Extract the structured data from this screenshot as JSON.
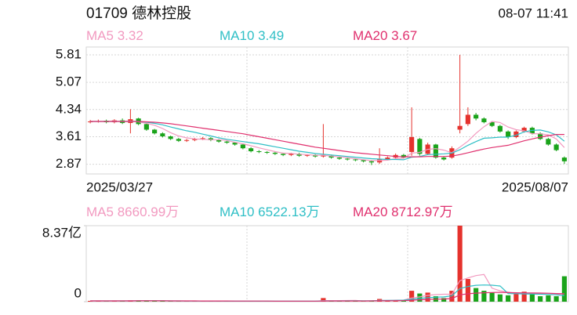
{
  "header": {
    "title": "01709 德林控股",
    "time": "08-07 11:41"
  },
  "chart_data": [
    {
      "type": "candlestick",
      "categories": [
        "2025/03/27",
        null,
        null,
        null,
        null,
        null,
        null,
        null,
        null,
        null,
        null,
        null,
        null,
        null,
        null,
        null,
        null,
        null,
        null,
        null,
        null,
        null,
        null,
        null,
        null,
        null,
        null,
        null,
        null,
        null,
        null,
        null,
        null,
        null,
        null,
        null,
        null,
        null,
        null,
        null,
        null,
        null,
        null,
        null,
        null,
        null,
        null,
        null,
        null,
        null,
        null,
        null,
        null,
        null,
        null,
        null,
        null,
        null,
        null,
        "2025/08/07"
      ],
      "open": [
        4.0,
        4.02,
        4.04,
        4.0,
        4.05,
        3.98,
        4.1,
        3.95,
        3.8,
        3.7,
        3.62,
        3.55,
        3.5,
        3.52,
        3.55,
        3.57,
        3.52,
        3.48,
        3.45,
        3.4,
        3.3,
        3.22,
        3.2,
        3.18,
        3.15,
        3.12,
        3.15,
        3.1,
        3.12,
        3.08,
        3.1,
        3.05,
        3.02,
        3.0,
        2.98,
        2.95,
        2.92,
        3.0,
        3.05,
        3.12,
        3.2,
        3.55,
        3.15,
        3.4,
        3.05,
        3.05,
        3.8,
        3.95,
        4.2,
        4.1,
        4.0,
        3.9,
        3.75,
        3.6,
        3.75,
        3.85,
        3.7,
        3.55,
        3.4,
        3.05
      ],
      "high": [
        4.06,
        4.07,
        4.07,
        4.08,
        4.1,
        4.35,
        4.12,
        3.98,
        3.82,
        3.73,
        3.64,
        3.58,
        3.55,
        3.58,
        3.6,
        3.6,
        3.55,
        3.5,
        3.47,
        3.42,
        3.33,
        3.25,
        3.22,
        3.21,
        3.18,
        3.18,
        3.18,
        3.14,
        3.14,
        3.95,
        3.13,
        3.08,
        3.05,
        3.03,
        3.0,
        2.98,
        3.3,
        3.08,
        3.16,
        3.15,
        4.4,
        3.58,
        3.45,
        3.42,
        3.08,
        3.35,
        5.81,
        4.4,
        4.25,
        4.13,
        4.03,
        3.93,
        3.78,
        3.78,
        3.88,
        3.88,
        3.73,
        3.58,
        3.43,
        3.08
      ],
      "low": [
        3.97,
        3.99,
        3.97,
        3.97,
        3.95,
        3.7,
        3.92,
        3.77,
        3.67,
        3.59,
        3.52,
        3.47,
        3.47,
        3.49,
        3.52,
        3.49,
        3.45,
        3.42,
        3.37,
        3.27,
        3.19,
        3.17,
        3.15,
        3.12,
        3.09,
        3.09,
        3.07,
        3.07,
        3.05,
        3.05,
        3.02,
        2.99,
        2.97,
        2.95,
        2.92,
        2.85,
        2.88,
        2.97,
        3.02,
        3.02,
        3.1,
        3.1,
        3.12,
        3.02,
        2.97,
        3.02,
        3.7,
        3.9,
        4.05,
        3.97,
        3.87,
        3.72,
        3.55,
        3.57,
        3.72,
        3.67,
        3.52,
        3.37,
        3.22,
        2.88
      ],
      "close": [
        4.02,
        4.03,
        4.0,
        4.05,
        3.98,
        4.08,
        3.95,
        3.8,
        3.7,
        3.62,
        3.55,
        3.5,
        3.52,
        3.55,
        3.57,
        3.52,
        3.48,
        3.45,
        3.4,
        3.3,
        3.22,
        3.2,
        3.18,
        3.15,
        3.12,
        3.15,
        3.1,
        3.12,
        3.08,
        3.12,
        3.05,
        3.02,
        3.0,
        2.98,
        2.95,
        2.92,
        3.0,
        3.05,
        3.12,
        3.05,
        3.6,
        3.15,
        3.4,
        3.05,
        3.0,
        3.3,
        3.9,
        4.2,
        4.1,
        4.0,
        3.9,
        3.75,
        3.6,
        3.75,
        3.85,
        3.7,
        3.55,
        3.4,
        3.25,
        2.95
      ],
      "series": [
        {
          "name": "MA5",
          "color": "#f29ac0",
          "values": [
            4.02,
            4.02,
            4.02,
            4.03,
            4.02,
            4.03,
            4.01,
            3.97,
            3.92,
            3.83,
            3.72,
            3.63,
            3.58,
            3.55,
            3.54,
            3.53,
            3.53,
            3.51,
            3.46,
            3.42,
            3.37,
            3.31,
            3.26,
            3.21,
            3.17,
            3.16,
            3.14,
            3.13,
            3.11,
            3.11,
            3.09,
            3.07,
            3.05,
            3.02,
            2.99,
            2.97,
            2.97,
            2.98,
            3.02,
            3.03,
            3.17,
            3.19,
            3.27,
            3.29,
            3.25,
            3.18,
            3.33,
            3.49,
            3.7,
            3.88,
            4.02,
            3.99,
            3.87,
            3.8,
            3.77,
            3.69,
            3.69,
            3.66,
            3.55,
            3.32
          ]
        },
        {
          "name": "MA10",
          "color": "#2fbfc6",
          "values": [
            4.02,
            4.02,
            4.02,
            4.02,
            4.02,
            4.02,
            4.02,
            4.0,
            3.97,
            3.93,
            3.87,
            3.82,
            3.77,
            3.73,
            3.68,
            3.63,
            3.58,
            3.54,
            3.51,
            3.48,
            3.45,
            3.42,
            3.38,
            3.34,
            3.3,
            3.26,
            3.22,
            3.19,
            3.16,
            3.14,
            3.12,
            3.1,
            3.08,
            3.06,
            3.04,
            3.02,
            3.01,
            3.0,
            3.0,
            2.99,
            3.06,
            3.08,
            3.13,
            3.14,
            3.15,
            3.17,
            3.26,
            3.38,
            3.48,
            3.57,
            3.58,
            3.6,
            3.6,
            3.65,
            3.74,
            3.78,
            3.79,
            3.74,
            3.66,
            3.49
          ]
        },
        {
          "name": "MA20",
          "color": "#e0306e",
          "values": [
            4.02,
            4.02,
            4.02,
            4.02,
            4.02,
            4.02,
            4.02,
            4.01,
            4.0,
            3.98,
            3.96,
            3.93,
            3.9,
            3.87,
            3.84,
            3.81,
            3.78,
            3.75,
            3.72,
            3.69,
            3.65,
            3.61,
            3.57,
            3.53,
            3.49,
            3.45,
            3.41,
            3.37,
            3.33,
            3.3,
            3.27,
            3.24,
            3.21,
            3.18,
            3.16,
            3.14,
            3.12,
            3.1,
            3.08,
            3.07,
            3.07,
            3.07,
            3.08,
            3.08,
            3.08,
            3.09,
            3.13,
            3.18,
            3.23,
            3.28,
            3.32,
            3.35,
            3.38,
            3.44,
            3.5,
            3.55,
            3.6,
            3.64,
            3.67,
            3.67
          ]
        }
      ],
      "ylim": [
        2.61,
        6.02
      ],
      "yticks": [
        2.87,
        3.61,
        4.34,
        5.07,
        5.81
      ],
      "up_color": "#e5322d",
      "down_color": "#1aa31a",
      "grid": true
    },
    {
      "type": "bar",
      "values": [
        900,
        800,
        700,
        1200,
        900,
        1500,
        1100,
        900,
        800,
        700,
        600,
        650,
        500,
        700,
        600,
        550,
        600,
        500,
        550,
        600,
        700,
        600,
        500,
        550,
        450,
        500,
        600,
        450,
        500,
        4000,
        700,
        600,
        800,
        900,
        1000,
        1200,
        3000,
        1500,
        1800,
        2000,
        12000,
        9000,
        10000,
        6000,
        4000,
        12000,
        83700,
        25000,
        15000,
        12000,
        10000,
        8000,
        7000,
        9000,
        11000,
        9000,
        6000,
        7000,
        6000,
        28000
      ],
      "series": [
        {
          "name": "MA5",
          "color": "#f29ac0",
          "value_label": "8660.99万",
          "values": [
            900,
            850,
            800,
            900,
            900,
            1000,
            1100,
            1100,
            1000,
            1000,
            900,
            750,
            700,
            650,
            600,
            600,
            600,
            600,
            560,
            560,
            600,
            590,
            590,
            590,
            560,
            560,
            520,
            520,
            500,
            1200,
            1250,
            1250,
            1300,
            1400,
            800,
            880,
            1380,
            1500,
            1700,
            1900,
            4060,
            5260,
            6960,
            7800,
            8200,
            8200,
            23140,
            26140,
            28740,
            29940,
            14800,
            12000,
            10400,
            9200,
            9000,
            8800,
            8600,
            8400,
            7800,
            8660.99
          ]
        },
        {
          "name": "MA10",
          "color": "#2fbfc6",
          "value_label": "6522.13万",
          "values": [
            900,
            880,
            850,
            880,
            880,
            900,
            950,
            950,
            950,
            940,
            900,
            850,
            780,
            730,
            700,
            700,
            650,
            620,
            600,
            600,
            600,
            600,
            590,
            580,
            570,
            560,
            560,
            550,
            540,
            880,
            890,
            900,
            920,
            960,
            1010,
            1060,
            1300,
            1400,
            1500,
            1650,
            2680,
            3500,
            4440,
            4960,
            5270,
            6350,
            14400,
            16700,
            18000,
            18400,
            18100,
            17300,
            9000,
            8800,
            8500,
            8400,
            8200,
            8000,
            7500,
            6522.13
          ]
        },
        {
          "name": "MA20",
          "color": "#e0306e",
          "value_label": "8712.97万",
          "values": [
            900,
            880,
            850,
            870,
            870,
            890,
            920,
            930,
            930,
            920,
            900,
            880,
            860,
            830,
            800,
            780,
            760,
            740,
            720,
            700,
            680,
            670,
            650,
            630,
            620,
            600,
            590,
            580,
            570,
            730,
            750,
            760,
            770,
            790,
            800,
            820,
            930,
            990,
            1040,
            1100,
            1620,
            2030,
            2500,
            2760,
            2900,
            3460,
            7500,
            8700,
            9400,
            9800,
            10100,
            10300,
            10000,
            9800,
            9700,
            9600,
            9500,
            9300,
            9000,
            8712.97
          ]
        }
      ],
      "ylim": [
        0,
        83700
      ],
      "yticks": [
        0,
        {
          "value": 83700,
          "label": "8.37亿"
        }
      ]
    }
  ]
}
